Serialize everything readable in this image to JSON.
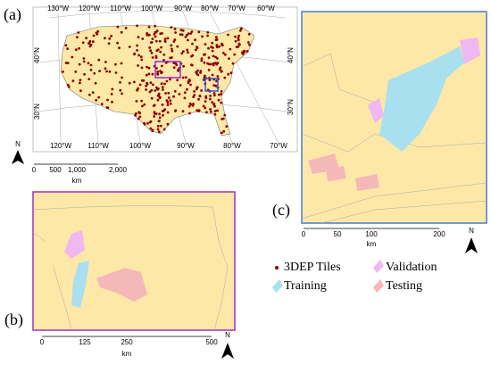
{
  "panels": [
    {
      "label": "(a)",
      "lon_top": [
        "130°W",
        "120°W",
        "110°W",
        "100°W",
        "90°W",
        "80°W",
        "70°W",
        "60°W"
      ],
      "lat_left": [
        "40°N",
        "30°N"
      ],
      "lat_right": [
        "40°N",
        "30°N"
      ],
      "lon_bottom": [
        "120°W",
        "110°W",
        "100°W",
        "90°W",
        "80°W",
        "70°W"
      ],
      "scale": [
        "0",
        "500",
        "1,000",
        "2,000"
      ],
      "unit": "km",
      "north": "N"
    },
    {
      "label": "(b)",
      "scale": [
        "0",
        "125",
        "250",
        "500"
      ],
      "unit": "km",
      "north": "N"
    },
    {
      "label": "(c)",
      "scale": [
        "0",
        "50",
        "100",
        "200"
      ],
      "unit": "km",
      "north": "N"
    }
  ],
  "legend": [
    "3DEP Tiles",
    "Validation",
    "Training",
    "Testing"
  ]
}
